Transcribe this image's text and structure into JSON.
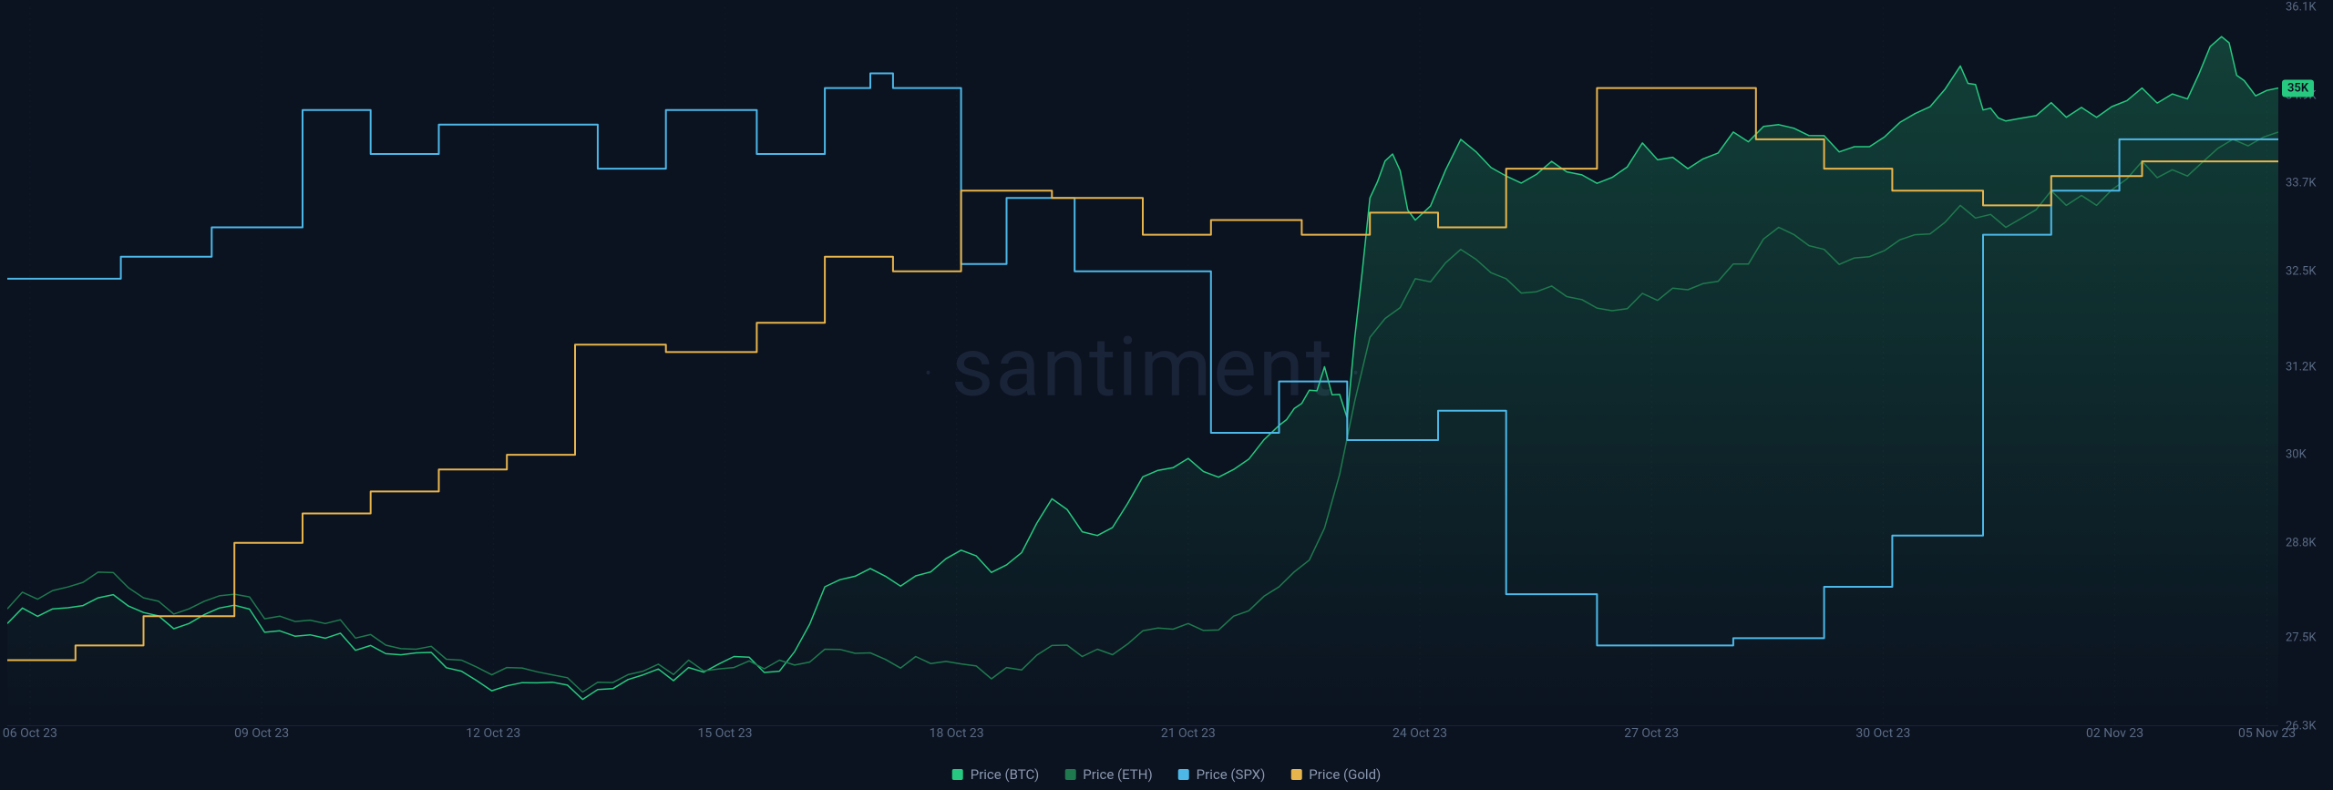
{
  "watermark": "santiment",
  "background_color": "#0b1220",
  "grid_color": "#1a2438",
  "axis_label_color": "#5a6b85",
  "legend_text_color": "#8a98b0",
  "chart": {
    "type": "line",
    "ylim": [
      26300,
      36100
    ],
    "y_ticks": [
      {
        "value": 36100,
        "label": "36.1K"
      },
      {
        "value": 34900,
        "label": "34.9K"
      },
      {
        "value": 33700,
        "label": "33.7K"
      },
      {
        "value": 32500,
        "label": "32.5K"
      },
      {
        "value": 31200,
        "label": "31.2K"
      },
      {
        "value": 30000,
        "label": "30K"
      },
      {
        "value": 28800,
        "label": "28.8K"
      },
      {
        "value": 27500,
        "label": "27.5K"
      },
      {
        "value": 26300,
        "label": "26.3K"
      }
    ],
    "y_badge": {
      "value": 35000,
      "label": "35K",
      "bg": "#26c97f"
    },
    "x_ticks": [
      {
        "pos": 0.01,
        "label": "06 Oct 23"
      },
      {
        "pos": 0.112,
        "label": "09 Oct 23"
      },
      {
        "pos": 0.214,
        "label": "12 Oct 23"
      },
      {
        "pos": 0.316,
        "label": "15 Oct 23"
      },
      {
        "pos": 0.418,
        "label": "18 Oct 23"
      },
      {
        "pos": 0.52,
        "label": "21 Oct 23"
      },
      {
        "pos": 0.622,
        "label": "24 Oct 23"
      },
      {
        "pos": 0.724,
        "label": "27 Oct 23"
      },
      {
        "pos": 0.826,
        "label": "30 Oct 23"
      },
      {
        "pos": 0.928,
        "label": "02 Nov 23"
      },
      {
        "pos": 0.995,
        "label": "05 Nov 23"
      }
    ],
    "series": [
      {
        "name": "Price (BTC)",
        "color": "#26c97f",
        "stroke_width": 1.5,
        "fill": true,
        "fill_opacity": 0.25,
        "style": "noisy",
        "points": [
          [
            0.0,
            27700
          ],
          [
            0.02,
            27900
          ],
          [
            0.04,
            28050
          ],
          [
            0.06,
            27850
          ],
          [
            0.08,
            27700
          ],
          [
            0.1,
            27950
          ],
          [
            0.12,
            27600
          ],
          [
            0.14,
            27500
          ],
          [
            0.16,
            27400
          ],
          [
            0.18,
            27300
          ],
          [
            0.2,
            27050
          ],
          [
            0.22,
            26850
          ],
          [
            0.24,
            26900
          ],
          [
            0.26,
            26800
          ],
          [
            0.28,
            27000
          ],
          [
            0.3,
            27100
          ],
          [
            0.32,
            27250
          ],
          [
            0.34,
            27050
          ],
          [
            0.36,
            28200
          ],
          [
            0.38,
            28450
          ],
          [
            0.4,
            28350
          ],
          [
            0.42,
            28700
          ],
          [
            0.44,
            28500
          ],
          [
            0.46,
            29400
          ],
          [
            0.48,
            28900
          ],
          [
            0.5,
            29700
          ],
          [
            0.52,
            29950
          ],
          [
            0.54,
            29800
          ],
          [
            0.56,
            30400
          ],
          [
            0.57,
            30700
          ],
          [
            0.58,
            31200
          ],
          [
            0.59,
            30500
          ],
          [
            0.6,
            33500
          ],
          [
            0.61,
            34100
          ],
          [
            0.62,
            33200
          ],
          [
            0.64,
            34300
          ],
          [
            0.66,
            33800
          ],
          [
            0.68,
            34000
          ],
          [
            0.7,
            33700
          ],
          [
            0.72,
            34250
          ],
          [
            0.74,
            33900
          ],
          [
            0.76,
            34400
          ],
          [
            0.78,
            34500
          ],
          [
            0.8,
            34350
          ],
          [
            0.82,
            34200
          ],
          [
            0.84,
            34650
          ],
          [
            0.86,
            35300
          ],
          [
            0.87,
            34700
          ],
          [
            0.88,
            34550
          ],
          [
            0.9,
            34800
          ],
          [
            0.92,
            34600
          ],
          [
            0.94,
            35000
          ],
          [
            0.96,
            34850
          ],
          [
            0.975,
            35700
          ],
          [
            0.985,
            35100
          ],
          [
            1.0,
            35000
          ]
        ]
      },
      {
        "name": "Price (ETH)",
        "color": "#1e7a4e",
        "stroke_width": 1.5,
        "fill": false,
        "style": "noisy",
        "points": [
          [
            0.0,
            27900
          ],
          [
            0.02,
            28150
          ],
          [
            0.04,
            28400
          ],
          [
            0.06,
            28050
          ],
          [
            0.08,
            27900
          ],
          [
            0.1,
            28100
          ],
          [
            0.12,
            27800
          ],
          [
            0.14,
            27700
          ],
          [
            0.16,
            27550
          ],
          [
            0.18,
            27350
          ],
          [
            0.2,
            27200
          ],
          [
            0.22,
            27100
          ],
          [
            0.24,
            27000
          ],
          [
            0.26,
            26900
          ],
          [
            0.28,
            27050
          ],
          [
            0.3,
            27200
          ],
          [
            0.32,
            27100
          ],
          [
            0.34,
            27200
          ],
          [
            0.36,
            27350
          ],
          [
            0.38,
            27300
          ],
          [
            0.4,
            27250
          ],
          [
            0.42,
            27150
          ],
          [
            0.44,
            27100
          ],
          [
            0.46,
            27400
          ],
          [
            0.48,
            27350
          ],
          [
            0.5,
            27600
          ],
          [
            0.52,
            27700
          ],
          [
            0.54,
            27800
          ],
          [
            0.56,
            28200
          ],
          [
            0.58,
            29000
          ],
          [
            0.6,
            31600
          ],
          [
            0.62,
            32400
          ],
          [
            0.64,
            32800
          ],
          [
            0.66,
            32400
          ],
          [
            0.68,
            32300
          ],
          [
            0.7,
            32000
          ],
          [
            0.72,
            32200
          ],
          [
            0.74,
            32250
          ],
          [
            0.76,
            32600
          ],
          [
            0.78,
            33100
          ],
          [
            0.8,
            32800
          ],
          [
            0.82,
            32700
          ],
          [
            0.84,
            33000
          ],
          [
            0.86,
            33400
          ],
          [
            0.88,
            33100
          ],
          [
            0.9,
            33600
          ],
          [
            0.92,
            33400
          ],
          [
            0.94,
            34000
          ],
          [
            0.96,
            33800
          ],
          [
            0.98,
            34300
          ],
          [
            1.0,
            34400
          ]
        ]
      },
      {
        "name": "Price (SPX)",
        "color": "#4db8e8",
        "stroke_width": 2,
        "fill": false,
        "style": "step",
        "points": [
          [
            0.0,
            32400
          ],
          [
            0.05,
            32400
          ],
          [
            0.05,
            32700
          ],
          [
            0.09,
            32700
          ],
          [
            0.09,
            33100
          ],
          [
            0.13,
            33100
          ],
          [
            0.13,
            34700
          ],
          [
            0.16,
            34700
          ],
          [
            0.16,
            34100
          ],
          [
            0.19,
            34100
          ],
          [
            0.19,
            34500
          ],
          [
            0.26,
            34500
          ],
          [
            0.26,
            33900
          ],
          [
            0.29,
            33900
          ],
          [
            0.29,
            34700
          ],
          [
            0.33,
            34700
          ],
          [
            0.33,
            34100
          ],
          [
            0.36,
            34100
          ],
          [
            0.36,
            35000
          ],
          [
            0.38,
            35000
          ],
          [
            0.38,
            35200
          ],
          [
            0.39,
            35200
          ],
          [
            0.39,
            35000
          ],
          [
            0.42,
            35000
          ],
          [
            0.42,
            32600
          ],
          [
            0.44,
            32600
          ],
          [
            0.44,
            33500
          ],
          [
            0.47,
            33500
          ],
          [
            0.47,
            32500
          ],
          [
            0.53,
            32500
          ],
          [
            0.53,
            30300
          ],
          [
            0.56,
            30300
          ],
          [
            0.56,
            31000
          ],
          [
            0.59,
            31000
          ],
          [
            0.59,
            30200
          ],
          [
            0.63,
            30200
          ],
          [
            0.63,
            30600
          ],
          [
            0.66,
            30600
          ],
          [
            0.66,
            28100
          ],
          [
            0.7,
            28100
          ],
          [
            0.7,
            27400
          ],
          [
            0.76,
            27400
          ],
          [
            0.76,
            27500
          ],
          [
            0.8,
            27500
          ],
          [
            0.8,
            28200
          ],
          [
            0.83,
            28200
          ],
          [
            0.83,
            28900
          ],
          [
            0.87,
            28900
          ],
          [
            0.87,
            33000
          ],
          [
            0.9,
            33000
          ],
          [
            0.9,
            33600
          ],
          [
            0.93,
            33600
          ],
          [
            0.93,
            34300
          ],
          [
            1.0,
            34300
          ]
        ]
      },
      {
        "name": "Price (Gold)",
        "color": "#e8b54d",
        "stroke_width": 2,
        "fill": false,
        "style": "step",
        "points": [
          [
            0.0,
            27200
          ],
          [
            0.03,
            27200
          ],
          [
            0.03,
            27400
          ],
          [
            0.06,
            27400
          ],
          [
            0.06,
            27800
          ],
          [
            0.1,
            27800
          ],
          [
            0.1,
            28800
          ],
          [
            0.13,
            28800
          ],
          [
            0.13,
            29200
          ],
          [
            0.16,
            29200
          ],
          [
            0.16,
            29500
          ],
          [
            0.19,
            29500
          ],
          [
            0.19,
            29800
          ],
          [
            0.22,
            29800
          ],
          [
            0.22,
            30000
          ],
          [
            0.25,
            30000
          ],
          [
            0.25,
            31500
          ],
          [
            0.29,
            31500
          ],
          [
            0.29,
            31400
          ],
          [
            0.33,
            31400
          ],
          [
            0.33,
            31800
          ],
          [
            0.36,
            31800
          ],
          [
            0.36,
            32700
          ],
          [
            0.39,
            32700
          ],
          [
            0.39,
            32500
          ],
          [
            0.42,
            32500
          ],
          [
            0.42,
            33600
          ],
          [
            0.46,
            33600
          ],
          [
            0.46,
            33500
          ],
          [
            0.5,
            33500
          ],
          [
            0.5,
            33000
          ],
          [
            0.53,
            33000
          ],
          [
            0.53,
            33200
          ],
          [
            0.57,
            33200
          ],
          [
            0.57,
            33000
          ],
          [
            0.6,
            33000
          ],
          [
            0.6,
            33300
          ],
          [
            0.63,
            33300
          ],
          [
            0.63,
            33100
          ],
          [
            0.66,
            33100
          ],
          [
            0.66,
            33900
          ],
          [
            0.7,
            33900
          ],
          [
            0.7,
            35000
          ],
          [
            0.77,
            35000
          ],
          [
            0.77,
            34300
          ],
          [
            0.8,
            34300
          ],
          [
            0.8,
            33900
          ],
          [
            0.83,
            33900
          ],
          [
            0.83,
            33600
          ],
          [
            0.87,
            33600
          ],
          [
            0.87,
            33400
          ],
          [
            0.9,
            33400
          ],
          [
            0.9,
            33800
          ],
          [
            0.94,
            33800
          ],
          [
            0.94,
            34000
          ],
          [
            1.0,
            34000
          ]
        ]
      }
    ]
  },
  "legend": [
    {
      "label": "Price (BTC)",
      "color": "#26c97f"
    },
    {
      "label": "Price (ETH)",
      "color": "#1e7a4e"
    },
    {
      "label": "Price (SPX)",
      "color": "#4db8e8"
    },
    {
      "label": "Price (Gold)",
      "color": "#e8b54d"
    }
  ]
}
